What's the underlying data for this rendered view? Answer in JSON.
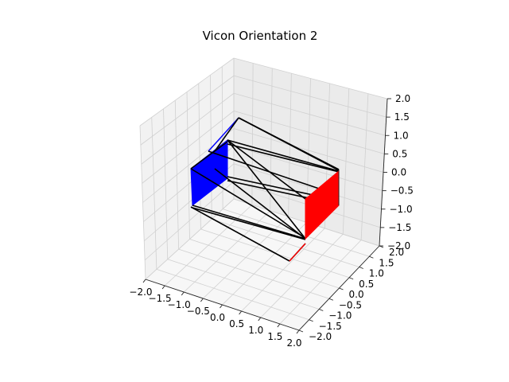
{
  "chart_data": {
    "type": "3d-line",
    "title": "Vicon Orientation  2",
    "xlabel": "",
    "ylabel": "",
    "zlabel": "",
    "xlim": [
      -2.0,
      2.0
    ],
    "ylim": [
      -2.0,
      2.0
    ],
    "zlim": [
      -2.0,
      2.0
    ],
    "grid": true,
    "x_ticks": [
      "−2.0",
      "−1.5",
      "−1.0",
      "−0.5",
      "0.0",
      "0.5",
      "1.0",
      "1.5",
      "2.0"
    ],
    "y_ticks": [
      "−2.0",
      "−1.5",
      "−1.0",
      "−0.5",
      "0.0",
      "0.5",
      "1.0",
      "1.5",
      "2.0"
    ],
    "z_ticks": [
      "−2.0",
      "−1.5",
      "−1.0",
      "−0.5",
      "0.0",
      "0.5",
      "1.0",
      "1.5",
      "2.0"
    ],
    "colors": {
      "frame": "#000000",
      "face_a": "#0000ff",
      "face_b": "#ff0000"
    }
  }
}
